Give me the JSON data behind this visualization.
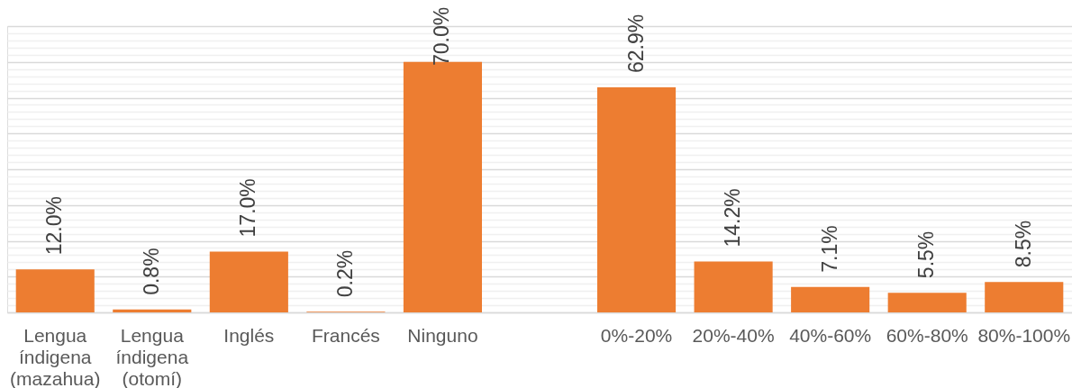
{
  "chart_data": {
    "type": "bar",
    "categories": [
      "Lengua índigena (mazahua)",
      "Lengua índigena (otomí)",
      "Inglés",
      "Francés",
      "Ninguno",
      null,
      "0%-20%",
      "20%-40%",
      "40%-60%",
      "60%-80%",
      "80%-100%"
    ],
    "values": [
      12.0,
      0.8,
      17.0,
      0.2,
      70.0,
      null,
      62.9,
      14.2,
      7.1,
      5.5,
      8.5
    ],
    "value_labels": [
      "12.0%",
      "0.8%",
      "17.0%",
      "0.2%",
      "70.0%",
      null,
      "62.9%",
      "14.2%",
      "7.1%",
      "5.5%",
      "8.5%"
    ],
    "color": "#ed7d31",
    "ylim": [
      0,
      80
    ],
    "grid": "y",
    "tick_labels": "x"
  }
}
